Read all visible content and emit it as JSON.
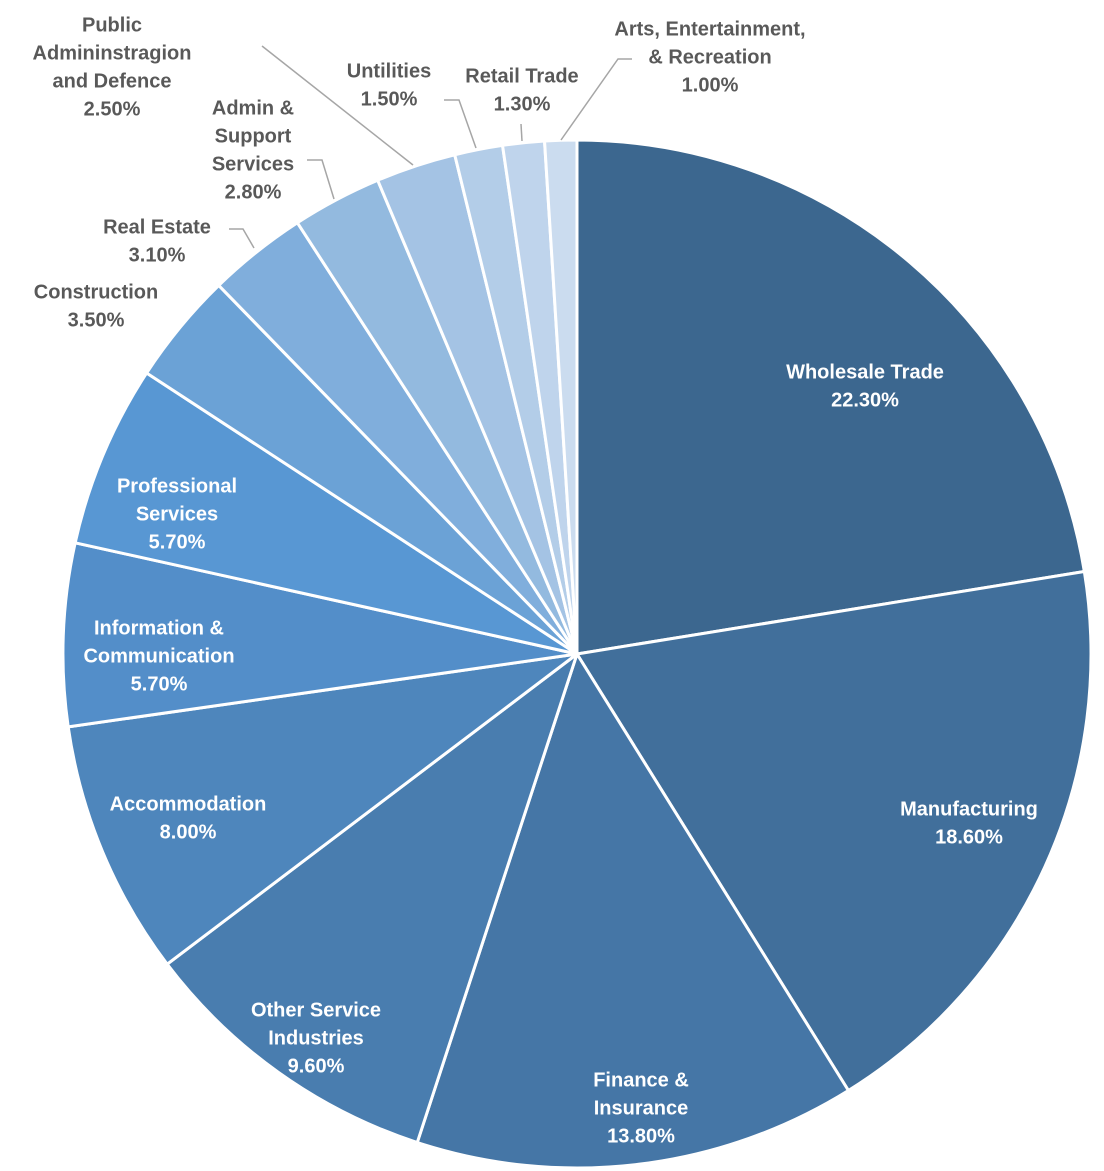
{
  "chart_data": {
    "type": "pie",
    "title": "",
    "slices": [
      {
        "label": [
          "Wholesale Trade"
        ],
        "value": 22.3,
        "value_label": "22.30%",
        "color": "#3c678f"
      },
      {
        "label": [
          "Manufacturing"
        ],
        "value": 18.6,
        "value_label": "18.60%",
        "color": "#416f9b"
      },
      {
        "label": [
          "Finance &",
          "Insurance"
        ],
        "value": 13.8,
        "value_label": "13.80%",
        "color": "#4576a6"
      },
      {
        "label": [
          "Other Service",
          "Industries"
        ],
        "value": 9.6,
        "value_label": "9.60%",
        "color": "#497daf"
      },
      {
        "label": [
          "Accommodation"
        ],
        "value": 8.0,
        "value_label": "8.00%",
        "color": "#4e86bc"
      },
      {
        "label": [
          "Information &",
          "Communication"
        ],
        "value": 5.7,
        "value_label": "5.70%",
        "color": "#538ec9"
      },
      {
        "label": [
          "Professional",
          "Services"
        ],
        "value": 5.7,
        "value_label": "5.70%",
        "color": "#5897d3"
      },
      {
        "label": [
          "Construction"
        ],
        "value": 3.5,
        "value_label": "3.50%",
        "color": "#6ba2d6"
      },
      {
        "label": [
          "Real Estate"
        ],
        "value": 3.1,
        "value_label": "3.10%",
        "color": "#80aedc"
      },
      {
        "label": [
          "Admin &",
          "Support",
          "Services"
        ],
        "value": 2.8,
        "value_label": "2.80%",
        "color": "#93badf"
      },
      {
        "label": [
          "Public",
          "Admininstragion",
          "and Defence"
        ],
        "value": 2.5,
        "value_label": "2.50%",
        "color": "#a4c3e4"
      },
      {
        "label": [
          "Untilities"
        ],
        "value": 1.5,
        "value_label": "1.50%",
        "color": "#b3cde8"
      },
      {
        "label": [
          "Retail Trade"
        ],
        "value": 1.3,
        "value_label": "1.30%",
        "color": "#bfd4ec"
      },
      {
        "label": [
          "Arts, Entertainment,",
          "& Recreation"
        ],
        "value": 1.0,
        "value_label": "1.00%",
        "color": "#cbdcef"
      }
    ]
  }
}
